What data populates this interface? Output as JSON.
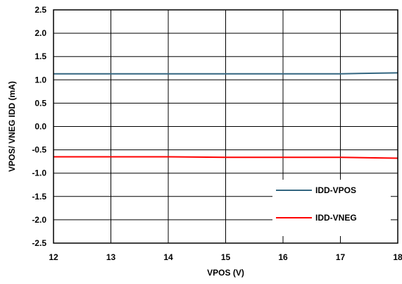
{
  "chart_data": {
    "type": "line",
    "title": "",
    "xlabel": "VPOS (V)",
    "ylabel": "VPOS/ VNEG IDD (mA)",
    "xlim": [
      12,
      18
    ],
    "ylim": [
      -2.5,
      2.5
    ],
    "xticks": [
      "12",
      "13",
      "14",
      "15",
      "16",
      "17",
      "18"
    ],
    "yticks": [
      "2.5",
      "2.0",
      "1.5",
      "1.0",
      "0.5",
      "0.0",
      "-0.5",
      "-1.0",
      "-1.5",
      "-2.0",
      "-2.5"
    ],
    "grid": true,
    "legend_position": "bottom-right",
    "series": [
      {
        "name": "IDD-VPOS",
        "color": "#336680",
        "x": [
          12,
          13,
          14,
          15,
          16,
          17,
          17.5,
          18
        ],
        "y": [
          1.13,
          1.13,
          1.13,
          1.13,
          1.13,
          1.13,
          1.14,
          1.15
        ]
      },
      {
        "name": "IDD-VNEG",
        "color": "#ff0000",
        "x": [
          12,
          13,
          14,
          15,
          16,
          17,
          17.5,
          18
        ],
        "y": [
          -0.65,
          -0.65,
          -0.65,
          -0.66,
          -0.66,
          -0.66,
          -0.67,
          -0.68
        ]
      }
    ]
  }
}
